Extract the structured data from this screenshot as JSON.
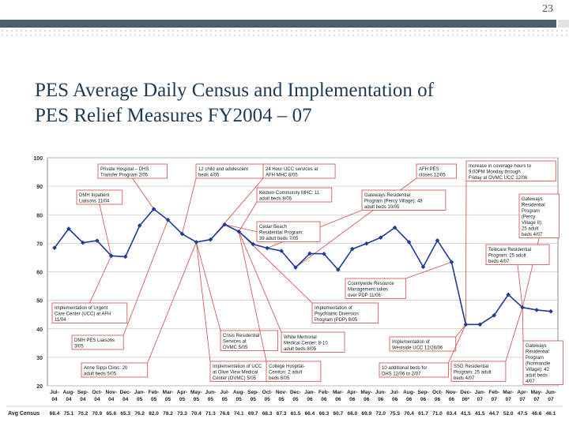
{
  "slide": {
    "page_number": "23",
    "title_line1": "PES Average Daily Census and Implementation of",
    "title_line2": "PES Relief Measures FY2004 – 07"
  },
  "colors": {
    "header_bar": "#4d5f6e",
    "title": "#1f3a55",
    "series": "#1f3a99",
    "annotation": "#d24a4a"
  },
  "chart_data": {
    "type": "line",
    "ylim": [
      20,
      100
    ],
    "yticks": [
      20,
      30,
      40,
      50,
      60,
      70,
      80,
      90,
      100
    ],
    "grid": true,
    "row_label": "Avg Census",
    "categories": [
      [
        "Jul-",
        "04"
      ],
      [
        "Aug-",
        "04"
      ],
      [
        "Sep-",
        "04"
      ],
      [
        "Oct-",
        "04"
      ],
      [
        "Nov-",
        "04"
      ],
      [
        "Dec-",
        "04"
      ],
      [
        "Jan-",
        "05"
      ],
      [
        "Feb-",
        "05"
      ],
      [
        "Mar-",
        "05"
      ],
      [
        "Apr-",
        "05"
      ],
      [
        "May-",
        "05"
      ],
      [
        "Jun-",
        "05"
      ],
      [
        "Jul-",
        "05"
      ],
      [
        "Aug-",
        "05"
      ],
      [
        "Sep-",
        "05"
      ],
      [
        "Oct-",
        "05"
      ],
      [
        "Nov-",
        "05"
      ],
      [
        "Dec-",
        "05"
      ],
      [
        "Jan-",
        "06"
      ],
      [
        "Feb-",
        "06"
      ],
      [
        "Mar-",
        "06"
      ],
      [
        "Apr-",
        "06"
      ],
      [
        "May-",
        "06"
      ],
      [
        "Jun-",
        "06"
      ],
      [
        "Jul-",
        "06"
      ],
      [
        "Aug-",
        "06"
      ],
      [
        "Sep-",
        "06"
      ],
      [
        "Oct-",
        "06"
      ],
      [
        "Nov-",
        "06"
      ],
      [
        "Dec-",
        "06*"
      ],
      [
        "Jan-",
        "07"
      ],
      [
        "Feb-",
        "07"
      ],
      [
        "Mar-",
        "07"
      ],
      [
        "Apr-",
        "07"
      ],
      [
        "May-",
        "07"
      ],
      [
        "Jun-",
        "07"
      ]
    ],
    "values": [
      68.4,
      75.1,
      70.2,
      70.9,
      65.6,
      65.3,
      76.2,
      82.0,
      78.2,
      73.3,
      70.4,
      71.3,
      76.6,
      74.1,
      69.7,
      68.3,
      67.3,
      61.5,
      66.4,
      66.3,
      60.7,
      68.0,
      69.9,
      72.0,
      75.5,
      70.4,
      61.7,
      71.0,
      63.4,
      41.5,
      41.5,
      44.7,
      52.0,
      47.5,
      46.6,
      46.1
    ],
    "value_labels": [
      "68.4",
      "75.1",
      "70.2",
      "70.9",
      "65.6",
      "65.3",
      "76.2",
      "82.0",
      "78.2",
      "73.3",
      "70.4",
      "71.3",
      "76.6",
      "74.1",
      "69.7",
      "68.3",
      "67.3",
      "61.5",
      "66.4",
      "66.3",
      "60.7",
      "68.0",
      "69.9",
      "72.0",
      "75.5",
      "70.4",
      "61.7",
      "71.0",
      "63.4",
      "41.5",
      "41.5",
      "44.7",
      "52.0",
      "47.5",
      "46.6",
      "46.1"
    ],
    "annotations": [
      {
        "text": [
          "Private Hospital – DHS",
          "Transfer Program 2/05"
        ],
        "index": 7
      },
      {
        "text": [
          "12 child and adolescent",
          "beds 4/05"
        ],
        "index": 9
      },
      {
        "text": [
          "24 Hour UCC services at",
          "AFH MHC 6/05"
        ],
        "index": 11
      },
      {
        "text": [
          "AFH PES",
          "closes 12/05"
        ],
        "index": 17
      },
      {
        "text": [
          "Increase in coverage hours to",
          "9:00PM Monday through",
          "Friday at OVMC UCC 12/06"
        ],
        "index": 29
      },
      {
        "text": [
          "DMH Inpatient",
          "Liaisons 11/04"
        ],
        "index": 4
      },
      {
        "text": [
          "Kedren Community MHC: 11",
          "adult beds 8/05"
        ],
        "index": 13
      },
      {
        "text": [
          "Gateways Residential",
          "Program (Percy Village): 48",
          "adult beds 10/05"
        ],
        "index": 15
      },
      {
        "text": [
          "Gateways",
          "Residential",
          "Program",
          "(Percy",
          "Village II):",
          "25 adult",
          "beds 4/07"
        ],
        "index": 33
      },
      {
        "text": [
          "Cedar Beach",
          "Residential Program:",
          "39 adult beds 7/05"
        ],
        "index": 12
      },
      {
        "text": [
          "Telecare Residential",
          "Program: 25 adult",
          "beds 4/07"
        ],
        "index": 33
      },
      {
        "text": [
          "Countywide Resource",
          "Management takes",
          "over PDP 11/06"
        ],
        "index": 28
      },
      {
        "text": [
          "Implementation of Urgent",
          "Care Center (UCC) at AFH",
          "11/04"
        ],
        "index": 4
      },
      {
        "text": [
          "Implementation of",
          "Psychiatric Diversion",
          "Program (PDP) 8/05"
        ],
        "index": 13
      },
      {
        "text": [
          "DMH PES Liaisons",
          "3/05"
        ],
        "index": 8
      },
      {
        "text": [
          "Crisis Residential",
          "Services at",
          "OVMC 5/05"
        ],
        "index": 10
      },
      {
        "text": [
          "White Memorial",
          "Medical Center: 8-10",
          "adult beds 8/05"
        ],
        "index": 13
      },
      {
        "text": [
          "Implementation of",
          "Westside UCC 12/26/06"
        ],
        "index": 29
      },
      {
        "text": [
          "Gateways",
          "Residential",
          "Program",
          "(Normandie",
          "Village): 42",
          "adult beds",
          "4/07"
        ],
        "index": 33
      },
      {
        "text": [
          "Anne Sippi Clinic: 20",
          "adult beds 5/05"
        ],
        "index": 10
      },
      {
        "text": [
          "Implementation of UCC",
          "at Olive View Medical",
          "Center (OVMC) 5/05"
        ],
        "index": 10
      },
      {
        "text": [
          "College Hospital-",
          "Cerritos: 2 adult",
          "beds 8/05"
        ],
        "index": 13
      },
      {
        "text": [
          "10 additional beds for",
          "DHS 12/06 to 2/07"
        ],
        "index": 29
      },
      {
        "text": [
          "SSG Residential",
          "Program: 25 adult",
          "beds 4/07"
        ],
        "index": 33
      }
    ]
  }
}
